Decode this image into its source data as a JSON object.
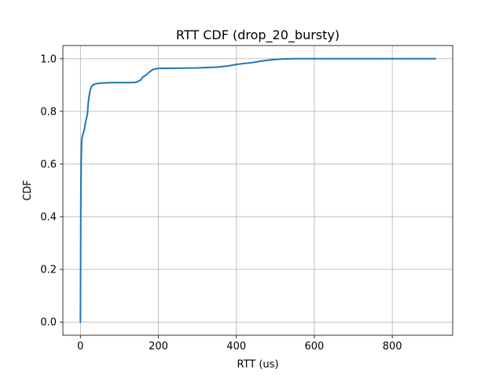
{
  "chart_data": {
    "type": "line",
    "title": "RTT CDF (drop_20_bursty)",
    "xlabel": "RTT (us)",
    "ylabel": "CDF",
    "xlim": [
      -45,
      955
    ],
    "ylim": [
      -0.05,
      1.05
    ],
    "grid": true,
    "legend": "none",
    "x_ticks": [
      0,
      200,
      400,
      600,
      800
    ],
    "y_ticks": [
      0.0,
      0.2,
      0.4,
      0.6,
      0.8,
      1.0
    ],
    "x_tick_labels": [
      "0",
      "200",
      "400",
      "600",
      "800"
    ],
    "y_tick_labels": [
      "0.0",
      "0.2",
      "0.4",
      "0.6",
      "0.8",
      "1.0"
    ],
    "series": [
      {
        "color": "#1f77b4",
        "x": [
          0,
          0.5,
          1,
          2,
          3,
          4,
          6,
          8,
          10,
          12,
          15,
          18,
          20,
          22,
          25,
          28,
          32,
          36,
          40,
          50,
          60,
          80,
          100,
          120,
          140,
          145,
          150,
          155,
          160,
          165,
          170,
          175,
          180,
          185,
          190,
          200,
          250,
          300,
          350,
          380,
          400,
          420,
          440,
          460,
          480,
          500,
          520,
          550,
          600,
          700,
          800,
          910
        ],
        "y": [
          0.0,
          0.2,
          0.45,
          0.6,
          0.68,
          0.7,
          0.71,
          0.72,
          0.73,
          0.75,
          0.77,
          0.79,
          0.83,
          0.855,
          0.88,
          0.893,
          0.9,
          0.903,
          0.905,
          0.907,
          0.908,
          0.909,
          0.909,
          0.909,
          0.91,
          0.912,
          0.915,
          0.92,
          0.93,
          0.935,
          0.94,
          0.947,
          0.953,
          0.958,
          0.961,
          0.963,
          0.964,
          0.965,
          0.968,
          0.973,
          0.978,
          0.982,
          0.985,
          0.99,
          0.994,
          0.997,
          0.999,
          1.0,
          1.0,
          1.0,
          1.0,
          1.0
        ]
      }
    ]
  }
}
